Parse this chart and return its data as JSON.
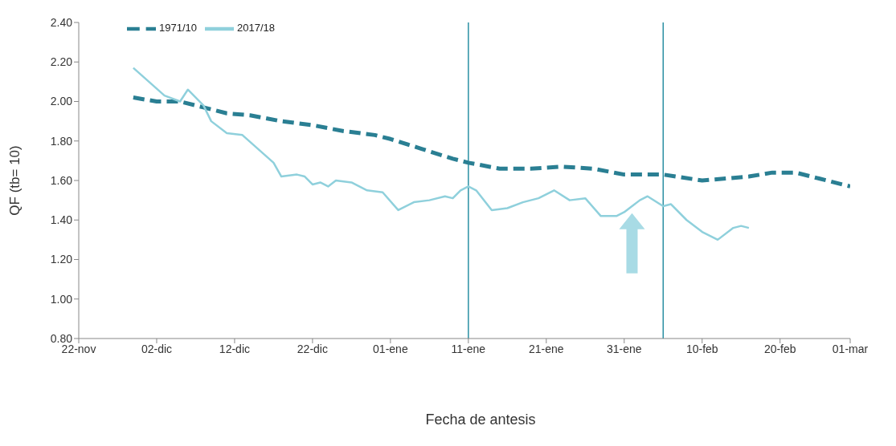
{
  "chart_data": {
    "type": "line",
    "xlabel": "Fecha de antesis",
    "ylabel": "QF (tb= 10)",
    "xlim": [
      "2017-11-22",
      "2018-03-01"
    ],
    "xticks": [
      {
        "value": "2017-11-22",
        "label": "22-nov"
      },
      {
        "value": "2017-12-02",
        "label": "02-dic"
      },
      {
        "value": "2017-12-12",
        "label": "12-dic"
      },
      {
        "value": "2017-12-22",
        "label": "22-dic"
      },
      {
        "value": "2018-01-01",
        "label": "01-ene"
      },
      {
        "value": "2018-01-11",
        "label": "11-ene"
      },
      {
        "value": "2018-01-21",
        "label": "21-ene"
      },
      {
        "value": "2018-01-31",
        "label": "31-ene"
      },
      {
        "value": "2018-02-10",
        "label": "10-feb"
      },
      {
        "value": "2018-02-20",
        "label": "20-feb"
      },
      {
        "value": "2018-03-01",
        "label": "01-mar"
      }
    ],
    "ylim": [
      0.8,
      2.4
    ],
    "yticks": [
      {
        "value": 0.8,
        "label": "0.80"
      },
      {
        "value": 1.0,
        "label": "1.00"
      },
      {
        "value": 1.2,
        "label": "1.20"
      },
      {
        "value": 1.4,
        "label": "1.40"
      },
      {
        "value": 1.6,
        "label": "1.60"
      },
      {
        "value": 1.8,
        "label": "1.80"
      },
      {
        "value": 2.0,
        "label": "2.00"
      },
      {
        "value": 2.2,
        "label": "2.20"
      },
      {
        "value": 2.4,
        "label": "2.40"
      }
    ],
    "grid": false,
    "legend": "top left",
    "marker": "none",
    "series": [
      {
        "name": "1971/10",
        "color": "#2a7f93",
        "line_style": "dashed",
        "x": [
          "2017-11-29",
          "2017-12-02",
          "2017-12-05",
          "2017-12-08",
          "2017-12-11",
          "2017-12-14",
          "2017-12-18",
          "2017-12-22",
          "2017-12-26",
          "2017-12-30",
          "2018-01-01",
          "2018-01-05",
          "2018-01-09",
          "2018-01-11",
          "2018-01-15",
          "2018-01-19",
          "2018-01-23",
          "2018-01-27",
          "2018-01-31",
          "2018-02-05",
          "2018-02-10",
          "2018-02-13",
          "2018-02-16",
          "2018-02-19",
          "2018-02-22",
          "2018-02-25",
          "2018-03-01"
        ],
        "values": [
          2.02,
          2.0,
          2.0,
          1.97,
          1.94,
          1.93,
          1.9,
          1.88,
          1.85,
          1.83,
          1.81,
          1.76,
          1.71,
          1.69,
          1.66,
          1.66,
          1.67,
          1.66,
          1.63,
          1.63,
          1.6,
          1.61,
          1.62,
          1.64,
          1.64,
          1.61,
          1.57
        ]
      },
      {
        "name": "2017/18",
        "color": "#8fd0dc",
        "line_style": "solid",
        "x": [
          "2017-11-29",
          "2017-12-01",
          "2017-12-03",
          "2017-12-05",
          "2017-12-06",
          "2017-12-08",
          "2017-12-09",
          "2017-12-11",
          "2017-12-13",
          "2017-12-15",
          "2017-12-17",
          "2017-12-18",
          "2017-12-20",
          "2017-12-21",
          "2017-12-22",
          "2017-12-23",
          "2017-12-24",
          "2017-12-25",
          "2017-12-27",
          "2017-12-29",
          "2017-12-31",
          "2018-01-02",
          "2018-01-04",
          "2018-01-06",
          "2018-01-08",
          "2018-01-09",
          "2018-01-10",
          "2018-01-11",
          "2018-01-12",
          "2018-01-14",
          "2018-01-16",
          "2018-01-18",
          "2018-01-20",
          "2018-01-22",
          "2018-01-24",
          "2018-01-26",
          "2018-01-28",
          "2018-01-30",
          "2018-01-31",
          "2018-02-02",
          "2018-02-03",
          "2018-02-05",
          "2018-02-06",
          "2018-02-08",
          "2018-02-10",
          "2018-02-12",
          "2018-02-14",
          "2018-02-15",
          "2018-02-16"
        ],
        "values": [
          2.17,
          2.1,
          2.03,
          2.0,
          2.06,
          1.98,
          1.9,
          1.84,
          1.83,
          1.76,
          1.69,
          1.62,
          1.63,
          1.62,
          1.58,
          1.59,
          1.57,
          1.6,
          1.59,
          1.55,
          1.54,
          1.45,
          1.49,
          1.5,
          1.52,
          1.51,
          1.55,
          1.57,
          1.55,
          1.45,
          1.46,
          1.49,
          1.51,
          1.55,
          1.5,
          1.51,
          1.42,
          1.42,
          1.44,
          1.5,
          1.52,
          1.47,
          1.48,
          1.4,
          1.34,
          1.3,
          1.36,
          1.37,
          1.36
        ]
      }
    ],
    "ref_lines": [
      {
        "axis": "x",
        "value": "2018-01-11",
        "color": "#2a8fa3"
      },
      {
        "axis": "x",
        "value": "2018-02-05",
        "color": "#2a8fa3"
      }
    ]
  }
}
